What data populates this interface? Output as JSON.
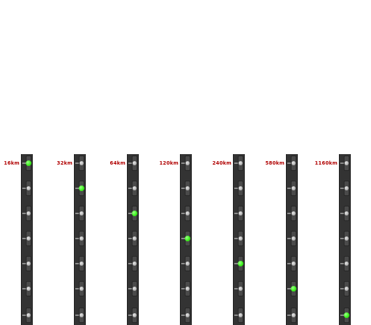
{
  "colors": {
    "strip": "#333333",
    "label": "#b00000",
    "led_off": "#c8c8c8",
    "led_on": "#3ef21e"
  },
  "range_selector": {
    "levels_per_column": 7,
    "columns": [
      {
        "label": "16km",
        "active_index": 0
      },
      {
        "label": "32km",
        "active_index": 1
      },
      {
        "label": "64km",
        "active_index": 2
      },
      {
        "label": "120km",
        "active_index": 3
      },
      {
        "label": "240km",
        "active_index": 4
      },
      {
        "label": "580km",
        "active_index": 5
      },
      {
        "label": "1160km",
        "active_index": 6
      }
    ]
  }
}
